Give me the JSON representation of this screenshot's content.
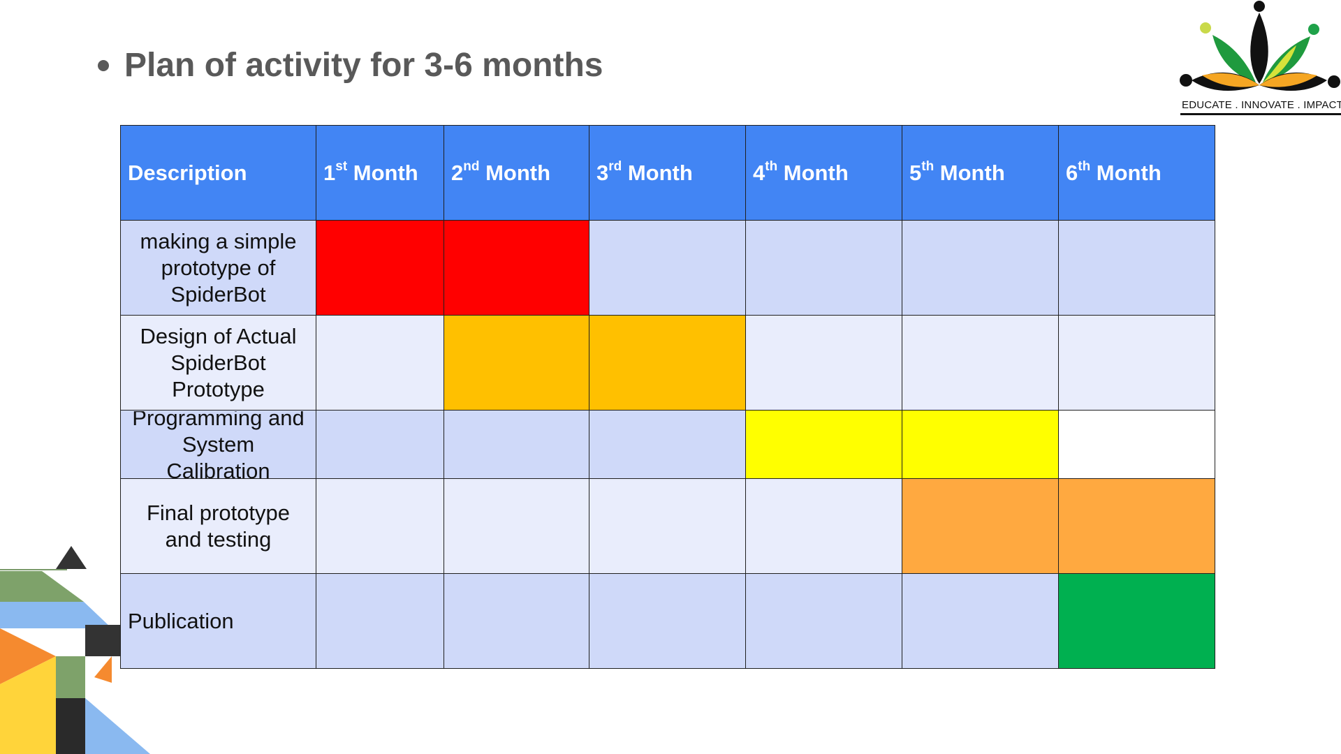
{
  "slide": {
    "title": "Plan of activity for 3-6 months"
  },
  "logo": {
    "tagline": "EDUCATE . INNOVATE . IMPACT"
  },
  "table": {
    "header": {
      "description": "Description",
      "months": [
        {
          "num": "1",
          "sup": "st",
          "word": " Month"
        },
        {
          "num": "2",
          "sup": "nd",
          "word": " Month"
        },
        {
          "num": "3",
          "sup": "rd",
          "word": " Month"
        },
        {
          "num": "4",
          "sup": "th",
          "word": " Month"
        },
        {
          "num": "5",
          "sup": "th",
          "word": " Month"
        },
        {
          "num": "6",
          "sup": "th",
          "word": " Month"
        }
      ]
    },
    "rows": [
      {
        "description": "making a simple prototype of SpiderBot",
        "cells": [
          "#ff0000",
          "#ff0000",
          "#cfd9f9",
          "#cfd9f9",
          "#cfd9f9",
          "#cfd9f9"
        ],
        "base": "#cfd9f9"
      },
      {
        "description": "Design of Actual SpiderBot Prototype",
        "cells": [
          "#e9edfc",
          "#ffc000",
          "#ffc000",
          "#e9edfc",
          "#e9edfc",
          "#e9edfc"
        ],
        "base": "#e9edfc"
      },
      {
        "description": "Programming and System Calibration",
        "cells": [
          "#cfd9f9",
          "#cfd9f9",
          "#cfd9f9",
          "#ffff00",
          "#ffff00",
          "#ffffff"
        ],
        "base": "#cfd9f9"
      },
      {
        "description": "Final prototype and testing",
        "cells": [
          "#e9edfc",
          "#e9edfc",
          "#e9edfc",
          "#e9edfc",
          "#ffa940",
          "#ffa940"
        ],
        "base": "#e9edfc"
      },
      {
        "description": "Publication",
        "cells": [
          "#cfd9f9",
          "#cfd9f9",
          "#cfd9f9",
          "#cfd9f9",
          "#cfd9f9",
          "#00b050"
        ],
        "base": "#cfd9f9"
      }
    ]
  },
  "colors": {
    "header_bg": "#4285f4",
    "title_text": "#595959"
  }
}
